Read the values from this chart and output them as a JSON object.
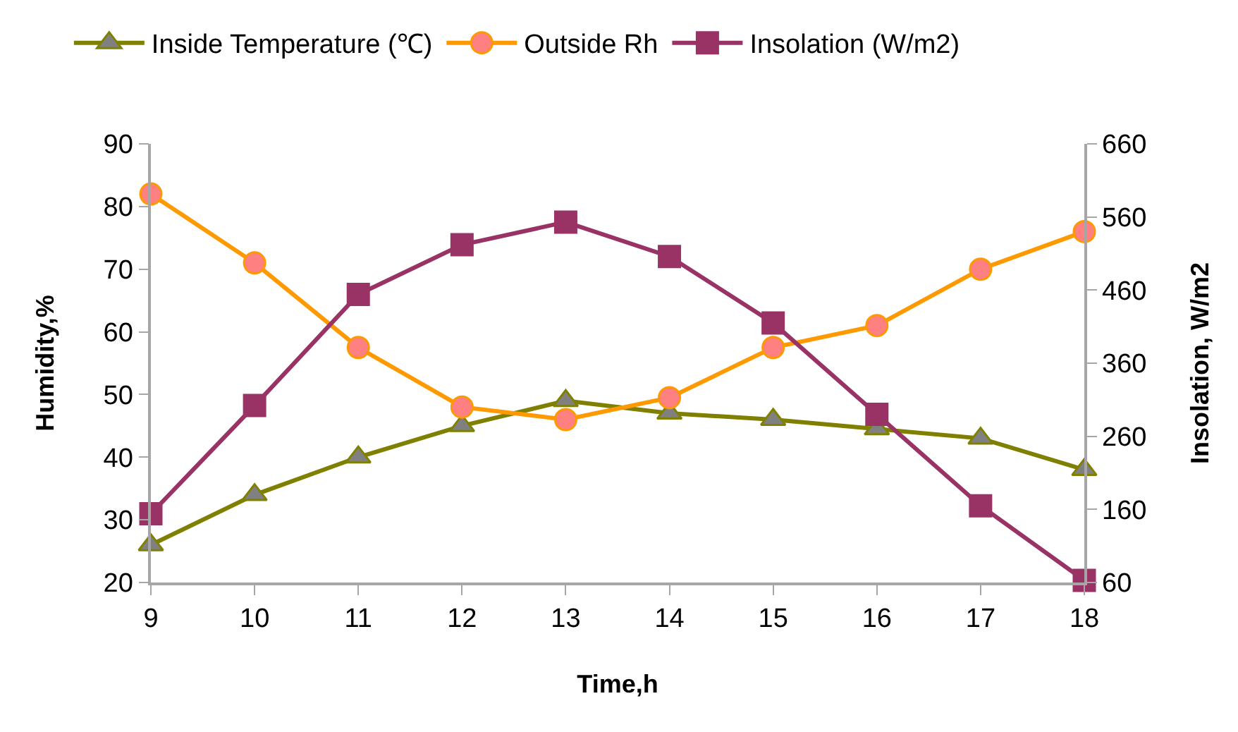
{
  "chart_data": {
    "type": "line",
    "xlabel": "Time,h",
    "ylabel": "Humidity,%",
    "y2label": "Insolation, W/m2",
    "x": [
      9,
      10,
      11,
      12,
      13,
      14,
      15,
      16,
      17,
      18
    ],
    "xlim": [
      9,
      18
    ],
    "xticks": [
      9,
      10,
      11,
      12,
      13,
      14,
      15,
      16,
      17,
      18
    ],
    "ylim": [
      20,
      90
    ],
    "yticks": [
      20,
      30,
      40,
      50,
      60,
      70,
      80,
      90
    ],
    "y2lim": [
      60,
      660
    ],
    "y2ticks": [
      60,
      160,
      260,
      360,
      460,
      560,
      660
    ],
    "legend": "top",
    "series": [
      {
        "name": "Inside Temperature (℃)",
        "color": "#808000",
        "marker": "triangle",
        "values": [
          26,
          34,
          40,
          45,
          49,
          47,
          46,
          44.5,
          43,
          38
        ]
      },
      {
        "name": "Outside Rh",
        "color": "#ff9900",
        "marker": "circle",
        "values": [
          82,
          71,
          57.5,
          48,
          46,
          49.5,
          57.5,
          61,
          70,
          76
        ]
      },
      {
        "name": "Insolation (W/m2)",
        "color": "#993366",
        "marker": "square",
        "axis": "y2",
        "values": [
          154,
          302,
          454,
          522,
          553,
          506,
          415,
          290,
          165,
          63
        ]
      }
    ]
  }
}
